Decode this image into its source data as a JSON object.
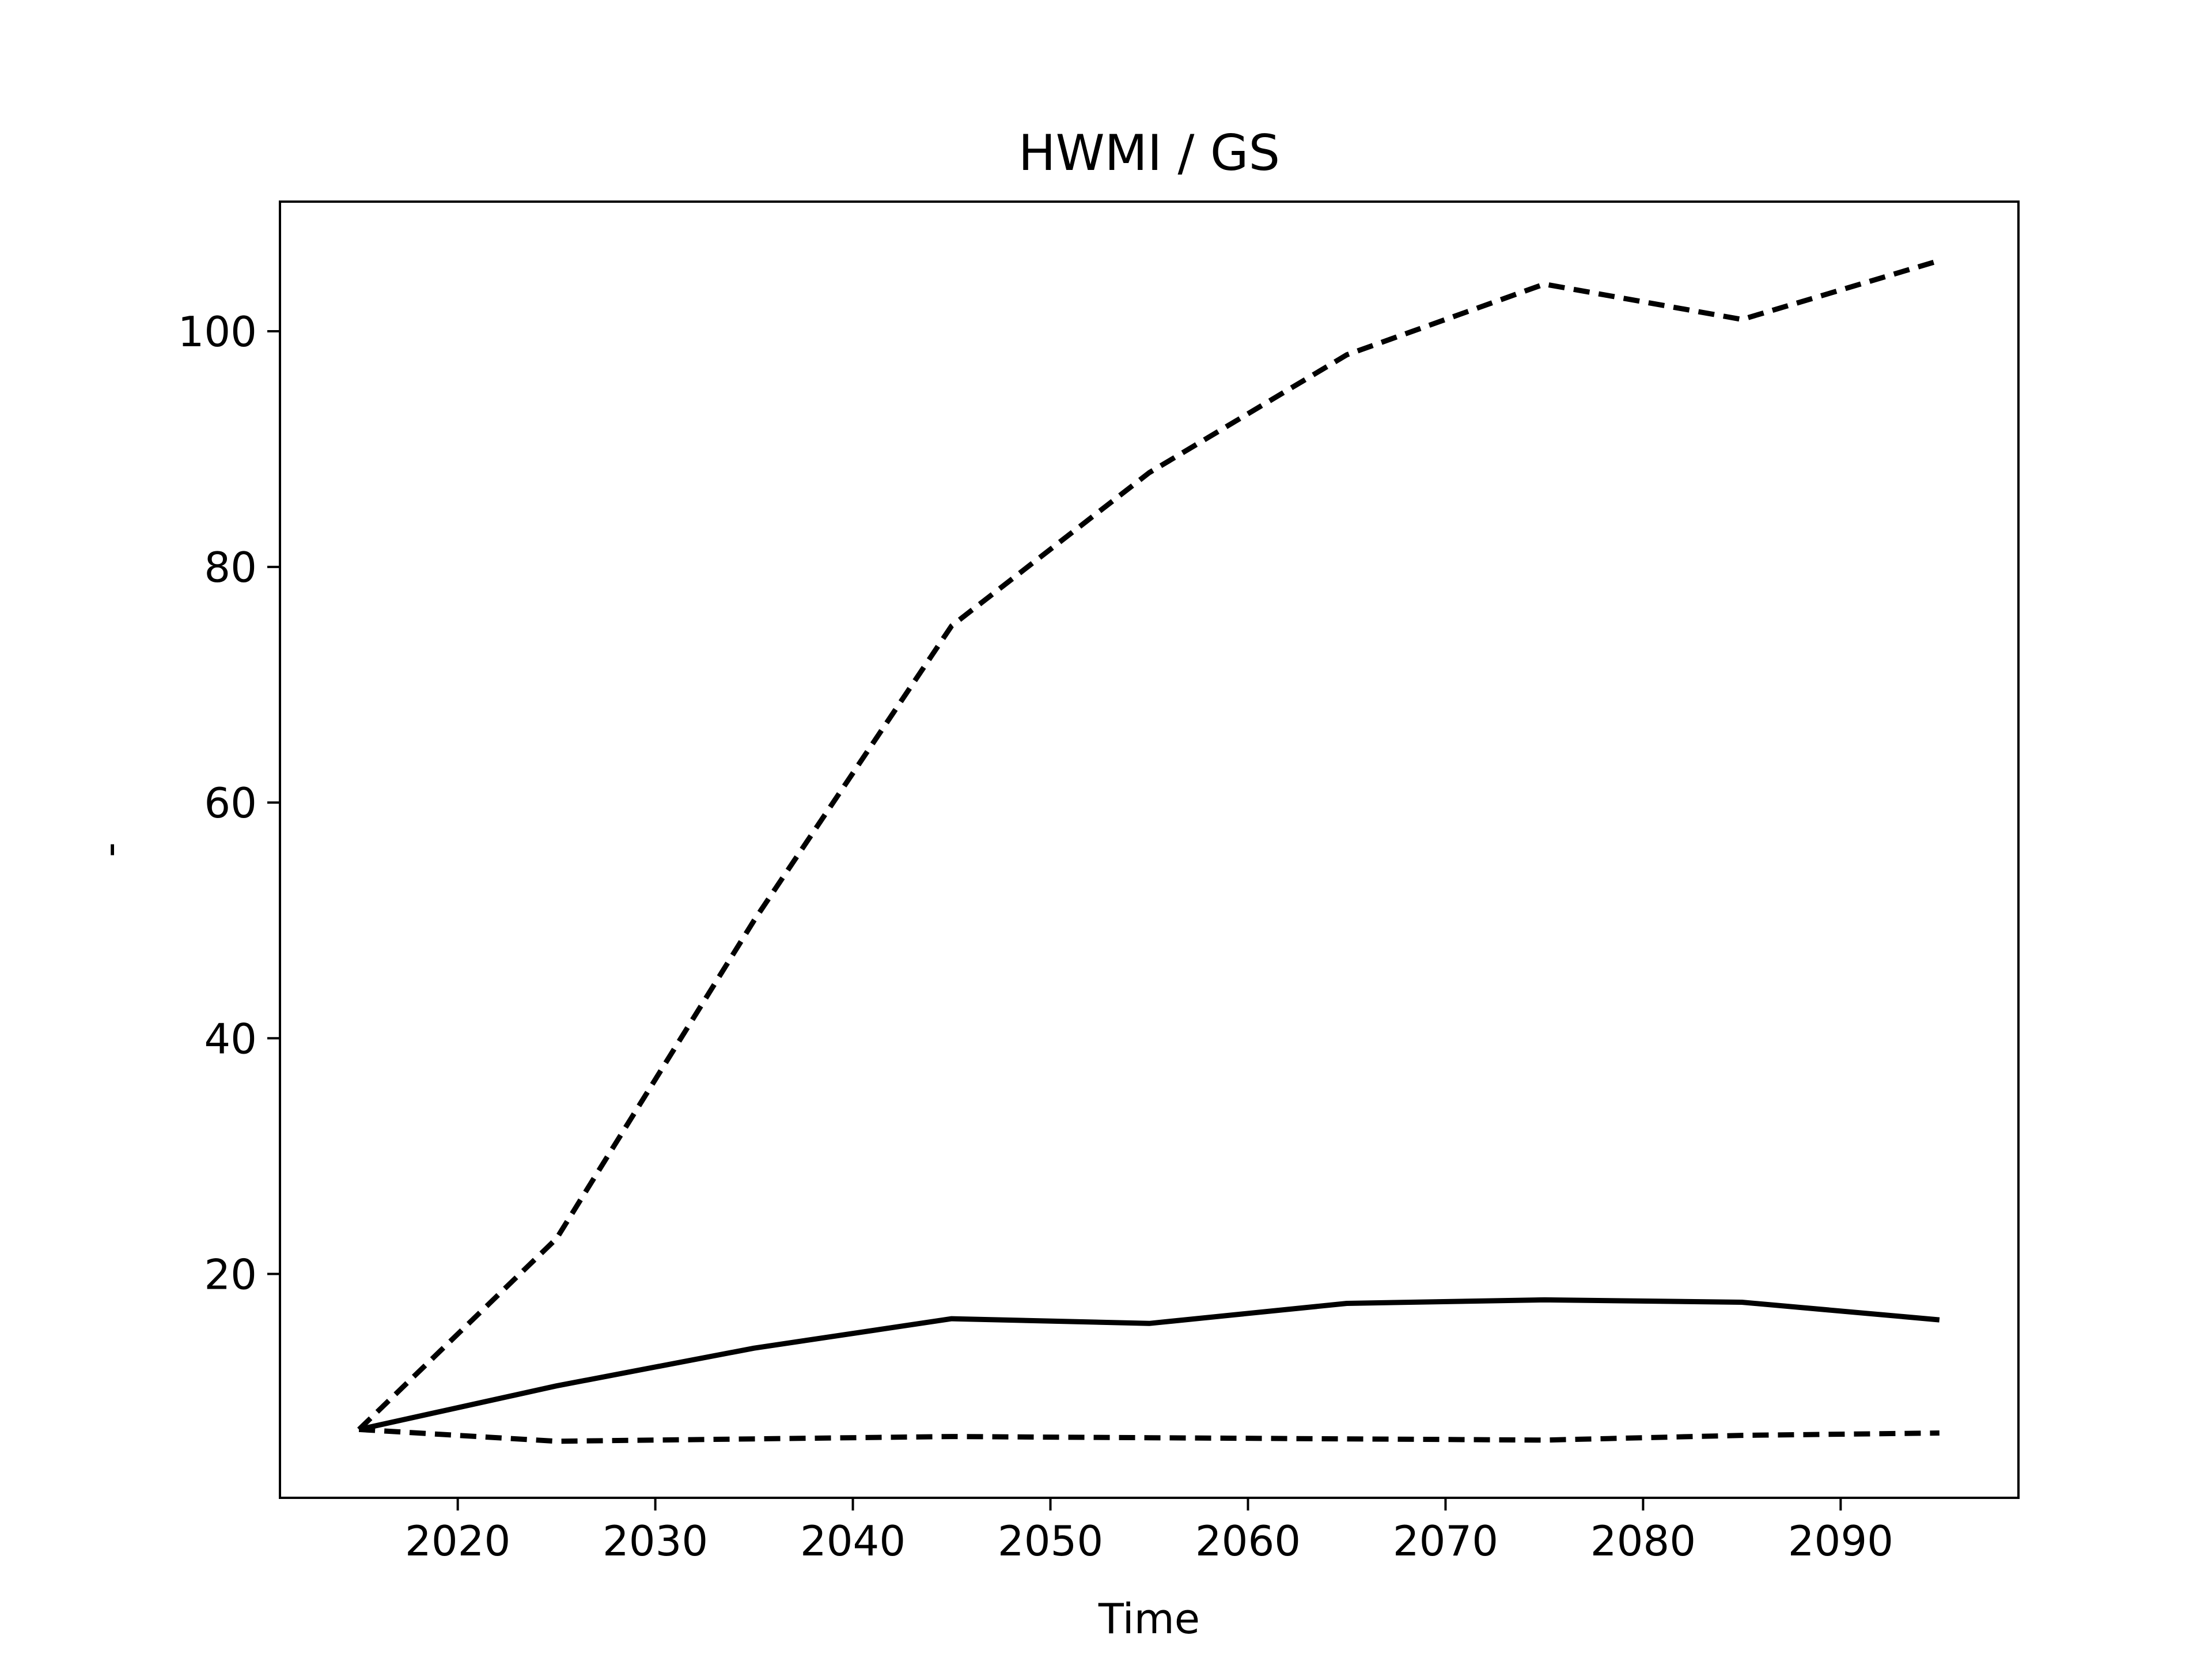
{
  "chart_data": {
    "type": "line",
    "title": "HWMI / GS",
    "xlabel": "Time",
    "ylabel": "-",
    "xlim": [
      2011,
      2099
    ],
    "ylim": [
      1,
      111
    ],
    "xticks": [
      2020,
      2030,
      2040,
      2050,
      2060,
      2070,
      2080,
      2090
    ],
    "yticks": [
      20,
      40,
      60,
      80,
      100
    ],
    "grid": false,
    "legend": "none",
    "x": [
      2015,
      2025,
      2035,
      2045,
      2055,
      2065,
      2075,
      2085,
      2095
    ],
    "series": [
      {
        "style": "dashed",
        "color": "#000000",
        "values": [
          6.8,
          23,
          50,
          75,
          88,
          98,
          104,
          101,
          106
        ]
      },
      {
        "style": "solid",
        "color": "#000000",
        "values": [
          6.8,
          10.5,
          13.7,
          16.2,
          15.8,
          17.5,
          17.8,
          17.6,
          16.1
        ]
      },
      {
        "style": "dashed",
        "color": "#000000",
        "values": [
          6.8,
          5.8,
          6.0,
          6.2,
          6.1,
          6.0,
          5.9,
          6.3,
          6.5
        ]
      }
    ]
  }
}
